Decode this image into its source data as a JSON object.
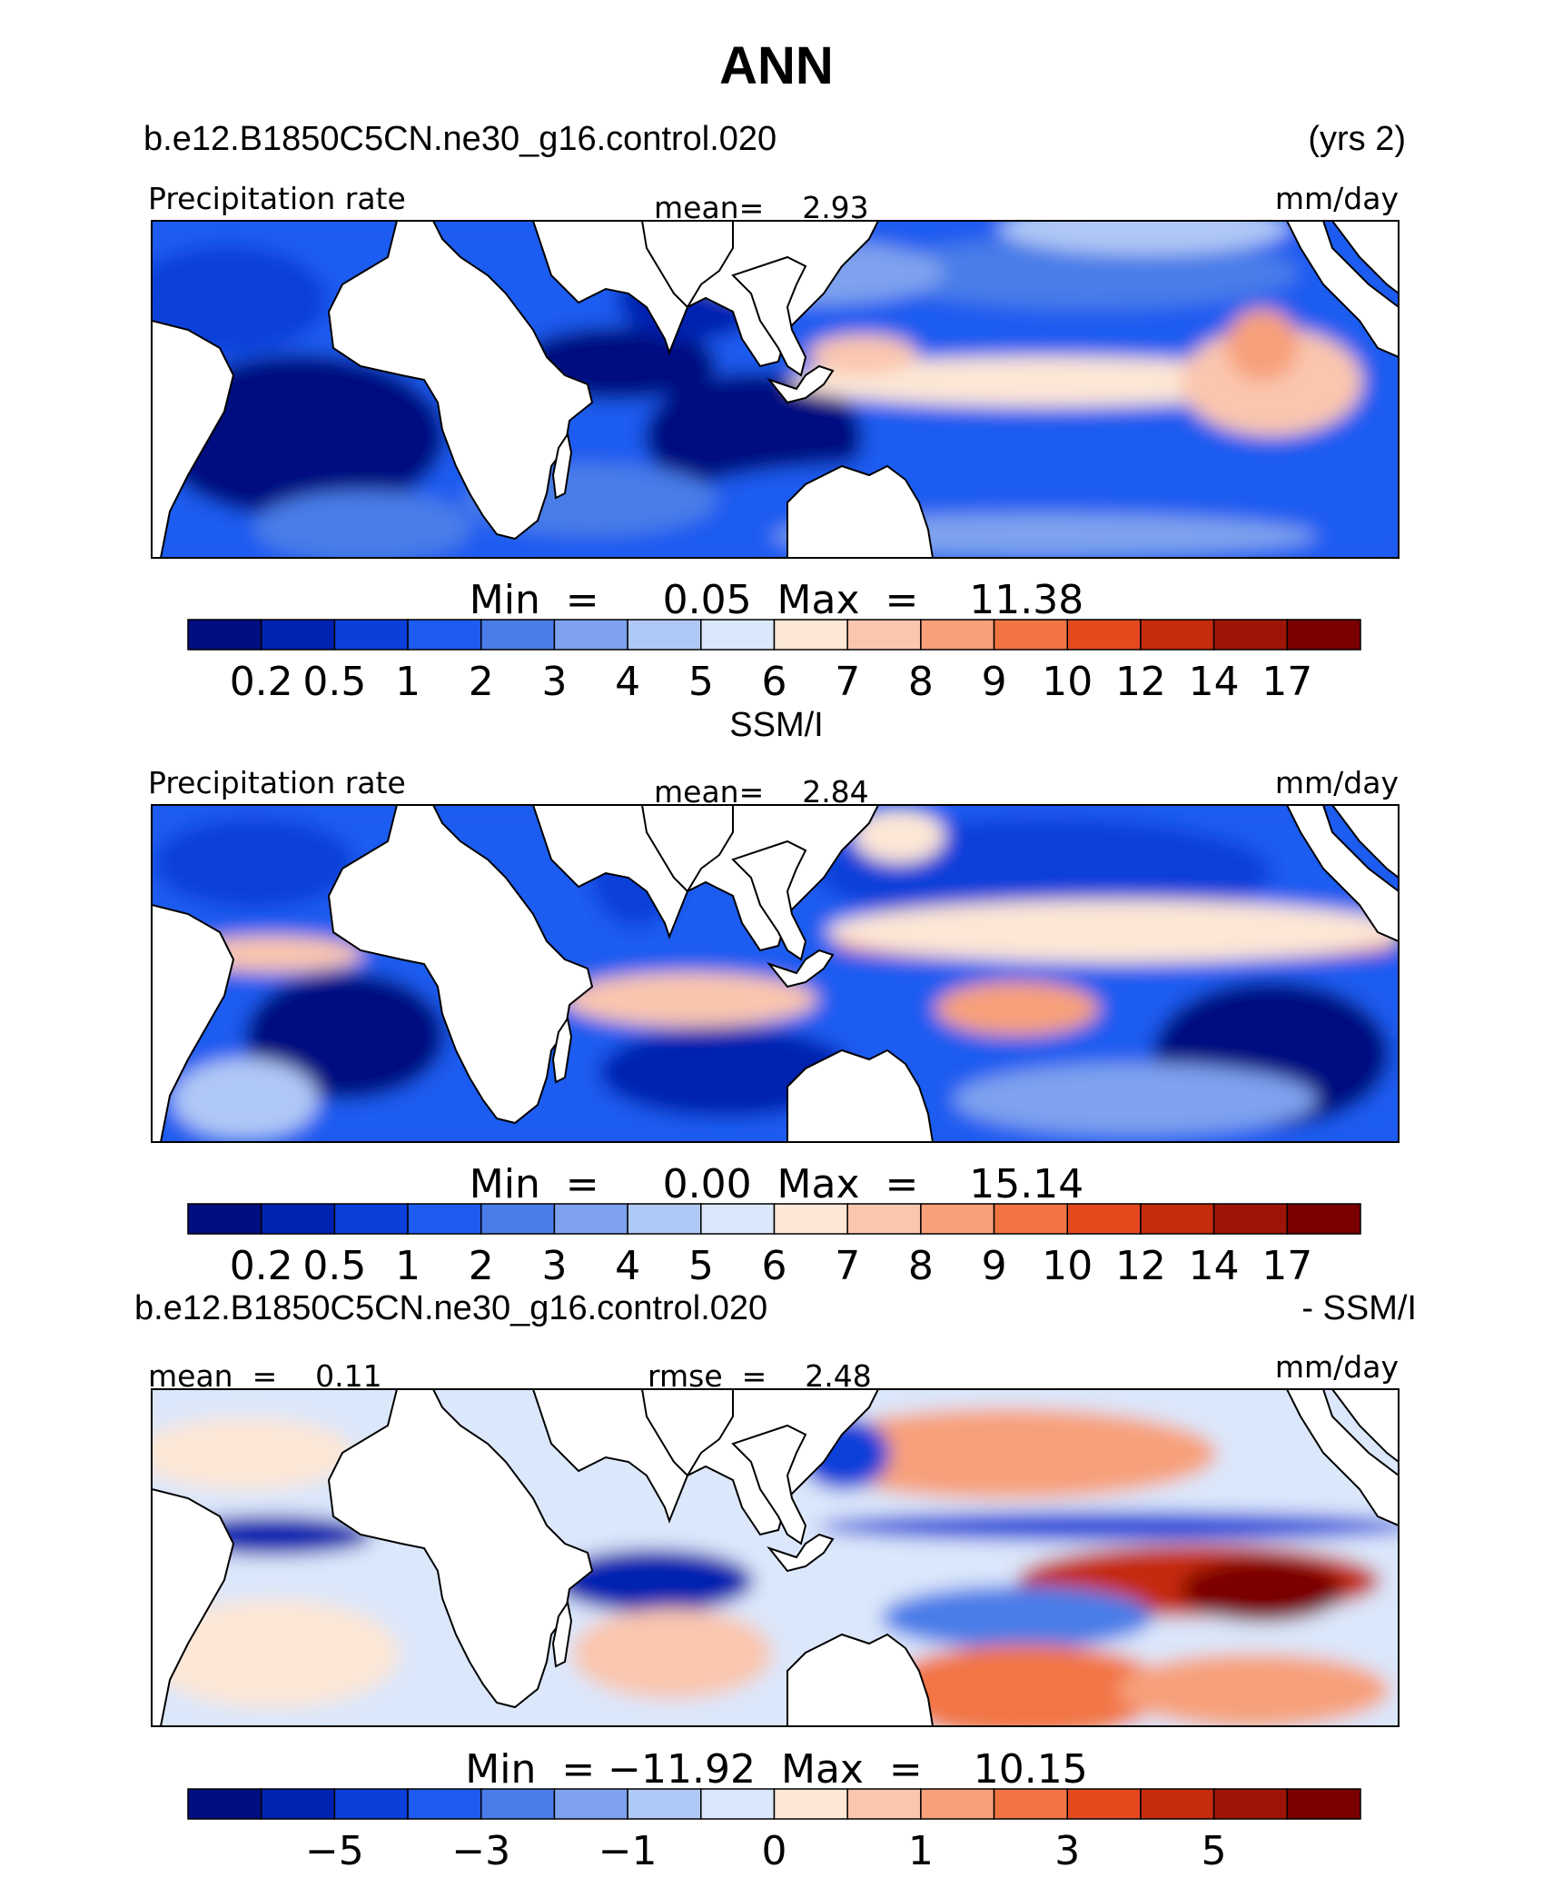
{
  "title": "ANN",
  "colors": {
    "precip": [
      "#000e80",
      "#0022b0",
      "#0a3fd9",
      "#1e5bf0",
      "#4a7de8",
      "#7ea2ee",
      "#b0c8f5",
      "#dbe7fb",
      "#fde7d6",
      "#fac6ae",
      "#f7a07a",
      "#f27444",
      "#e44a1e",
      "#c42c0c",
      "#9e1508",
      "#7a0000"
    ],
    "diff": [
      "#000e80",
      "#0022b0",
      "#0a3fd9",
      "#1e5bf0",
      "#4a7de8",
      "#7ea2ee",
      "#b0c8f5",
      "#dbe7fb",
      "#fde7d6",
      "#fac6ae",
      "#f7a07a",
      "#f27444",
      "#e44a1e",
      "#c42c0c",
      "#9e1508",
      "#7a0000"
    ],
    "land": "#ffffff",
    "coast": "#000000"
  },
  "panels": [
    {
      "header_left": "b.e12.B1850C5CN.ne30_g16.control.020",
      "header_right": "(yrs 2)",
      "label_left": "Precipitation rate",
      "label_center": "mean=    2.93",
      "label_right": "mm/day",
      "minmax": "Min  =     0.05  Max  =    11.38",
      "colorbar_labels": [
        "0.2",
        "0.5",
        "1",
        "2",
        "3",
        "4",
        "5",
        "6",
        "7",
        "8",
        "9",
        "10",
        "12",
        "14",
        "17"
      ]
    },
    {
      "header_center": "SSM/I",
      "label_left": "Precipitation rate",
      "label_center": "mean=    2.84",
      "label_right": "mm/day",
      "minmax": "Min  =     0.00  Max  =    15.14",
      "colorbar_labels": [
        "0.2",
        "0.5",
        "1",
        "2",
        "3",
        "4",
        "5",
        "6",
        "7",
        "8",
        "9",
        "10",
        "12",
        "14",
        "17"
      ]
    },
    {
      "header_left": "b.e12.B1850C5CN.ne30_g16.control.020",
      "header_right": "- SSM/I",
      "label_left": "mean  =    0.11",
      "label_center": "rmse  =    2.48",
      "label_right": "mm/day",
      "minmax": "Min  = −11.92  Max  =    10.15",
      "colorbar_labels": [
        "−5",
        "−3",
        "−1",
        "0",
        "1",
        "3",
        "5"
      ]
    }
  ]
}
